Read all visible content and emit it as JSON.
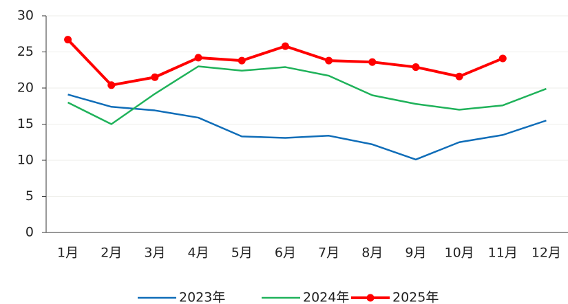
{
  "chart_data": {
    "type": "line",
    "categories": [
      "1月",
      "2月",
      "3月",
      "4月",
      "5月",
      "6月",
      "7月",
      "8月",
      "9月",
      "10月",
      "11月",
      "12月"
    ],
    "series": [
      {
        "name": "2023年",
        "color": "#0f6db8",
        "values": [
          19.1,
          17.4,
          16.9,
          15.9,
          13.3,
          13.1,
          13.4,
          12.2,
          10.1,
          12.5,
          13.5,
          15.5
        ]
      },
      {
        "name": "2024年",
        "color": "#1fb25a",
        "values": [
          18.0,
          15.0,
          19.2,
          23.0,
          22.4,
          22.9,
          21.7,
          19.0,
          17.8,
          17.0,
          17.6,
          19.9
        ]
      },
      {
        "name": "2025年",
        "color": "#ff0000",
        "markers": true,
        "values": [
          26.7,
          20.4,
          21.5,
          24.2,
          23.8,
          25.8,
          23.8,
          23.6,
          22.9,
          21.6,
          24.1,
          null
        ]
      }
    ],
    "ylim": [
      0,
      30
    ],
    "yticks": [
      0,
      5,
      10,
      15,
      20,
      25,
      30
    ],
    "grid": true,
    "legend": "bottom"
  }
}
